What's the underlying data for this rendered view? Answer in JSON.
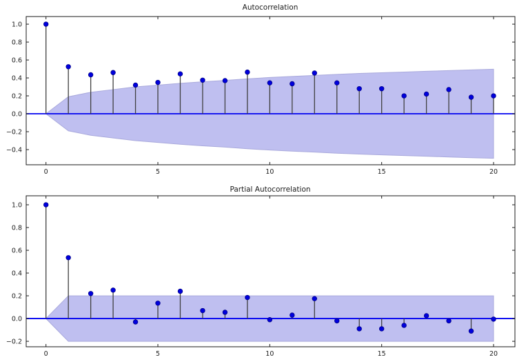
{
  "figure": {
    "kind": "acf-pacf-stem-figure",
    "background": "#ffffff"
  },
  "colors": {
    "marker": "#0000dd",
    "marker_edge": "#000088",
    "stem": "#3f3f3f",
    "zero_line": "#0000f0",
    "band_fill": "#bfbff0",
    "band_edge": "#a9a9dc",
    "frame": "#1a1a1a",
    "text": "#1a1a1a"
  },
  "chart_data": [
    {
      "type": "stem",
      "title": "Autocorrelation",
      "x": [
        0,
        1,
        2,
        3,
        4,
        5,
        6,
        7,
        8,
        9,
        10,
        11,
        12,
        13,
        14,
        15,
        16,
        17,
        18,
        19,
        20
      ],
      "values": [
        1.0,
        0.525,
        0.435,
        0.46,
        0.32,
        0.35,
        0.445,
        0.375,
        0.37,
        0.465,
        0.345,
        0.335,
        0.455,
        0.345,
        0.28,
        0.28,
        0.2,
        0.22,
        0.27,
        0.185,
        0.2
      ],
      "confidence_half_width": [
        0,
        0.19,
        0.24,
        0.27,
        0.3,
        0.32,
        0.34,
        0.357,
        0.372,
        0.39,
        0.405,
        0.417,
        0.428,
        0.44,
        0.45,
        0.458,
        0.466,
        0.474,
        0.482,
        0.49,
        0.497
      ],
      "zero_line": 0.0,
      "grid": "off",
      "legend": "none",
      "xlim": [
        -0.884,
        20.955
      ],
      "ylim": [
        -0.569,
        1.085
      ],
      "xticks": [
        0,
        5,
        10,
        15,
        20
      ],
      "xtick_labels": [
        "0",
        "5",
        "10",
        "15",
        "20"
      ],
      "yticks": [
        1.0,
        0.8,
        0.6,
        0.4,
        0.2,
        0.0,
        -0.2,
        -0.4
      ],
      "ytick_labels": [
        "1.0",
        "0.8",
        "0.6",
        "0.4",
        "0.2",
        "0.0",
        "−0.2",
        "−0.4"
      ]
    },
    {
      "type": "stem",
      "title": "Partial Autocorrelation",
      "x": [
        0,
        1,
        2,
        3,
        4,
        5,
        6,
        7,
        8,
        9,
        10,
        11,
        12,
        13,
        14,
        15,
        16,
        17,
        18,
        19,
        20
      ],
      "values": [
        1.0,
        0.535,
        0.22,
        0.25,
        -0.03,
        0.135,
        0.24,
        0.07,
        0.055,
        0.185,
        -0.01,
        0.03,
        0.175,
        -0.02,
        -0.09,
        -0.09,
        -0.06,
        0.025,
        -0.02,
        -0.11,
        -0.005
      ],
      "confidence_half_width": [
        0,
        0.2,
        0.2,
        0.2,
        0.2,
        0.2,
        0.2,
        0.2,
        0.2,
        0.2,
        0.2,
        0.2,
        0.2,
        0.2,
        0.2,
        0.2,
        0.2,
        0.2,
        0.2,
        0.2,
        0.2
      ],
      "zero_line": 0.0,
      "grid": "off",
      "legend": "none",
      "xlim": [
        -0.884,
        20.955
      ],
      "ylim": [
        -0.248,
        1.079
      ],
      "xticks": [
        0,
        5,
        10,
        15,
        20
      ],
      "xtick_labels": [
        "0",
        "5",
        "10",
        "15",
        "20"
      ],
      "yticks": [
        1.0,
        0.8,
        0.6,
        0.4,
        0.2,
        0.0,
        -0.2
      ],
      "ytick_labels": [
        "1.0",
        "0.8",
        "0.6",
        "0.4",
        "0.2",
        "0.0",
        "−0.2"
      ]
    }
  ]
}
